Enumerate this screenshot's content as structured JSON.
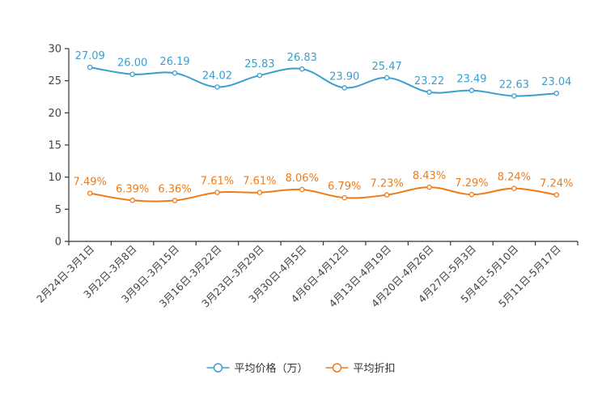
{
  "chart_data": {
    "type": "line",
    "title": "",
    "xlabel": "",
    "ylabel": "",
    "ylim": [
      0,
      30
    ],
    "yticks": [
      0,
      5,
      10,
      15,
      20,
      25,
      30
    ],
    "grid": false,
    "legend_position": "bottom-center",
    "categories": [
      "2月24日-3月1日",
      "3月2日-3月8日",
      "3月9日-3月15日",
      "3月16日-3月22日",
      "3月23日-3月29日",
      "3月30日-4月5日",
      "4月6日-4月12日",
      "4月13日-4月19日",
      "4月20日-4月26日",
      "4月27日-5月3日",
      "5月4日-5月10日",
      "5月11日-5月17日"
    ],
    "series": [
      {
        "name": "平均价格（万）",
        "color": "#3a9fcf",
        "values": [
          27.09,
          26.0,
          26.19,
          24.02,
          25.83,
          26.83,
          23.9,
          25.47,
          23.22,
          23.49,
          22.63,
          23.04
        ],
        "labels": [
          "27.09",
          "26.00",
          "26.19",
          "24.02",
          "25.83",
          "26.83",
          "23.90",
          "25.47",
          "23.22",
          "23.49",
          "22.63",
          "23.04"
        ]
      },
      {
        "name": "平均折扣",
        "color": "#f07b17",
        "values": [
          7.49,
          6.39,
          6.36,
          7.61,
          7.61,
          8.06,
          6.79,
          7.23,
          8.43,
          7.29,
          8.24,
          7.24
        ],
        "labels": [
          "7.49%",
          "6.39%",
          "6.36%",
          "7.61%",
          "7.61%",
          "8.06%",
          "6.79%",
          "7.23%",
          "8.43%",
          "7.29%",
          "8.24%",
          "7.24%"
        ]
      }
    ]
  }
}
